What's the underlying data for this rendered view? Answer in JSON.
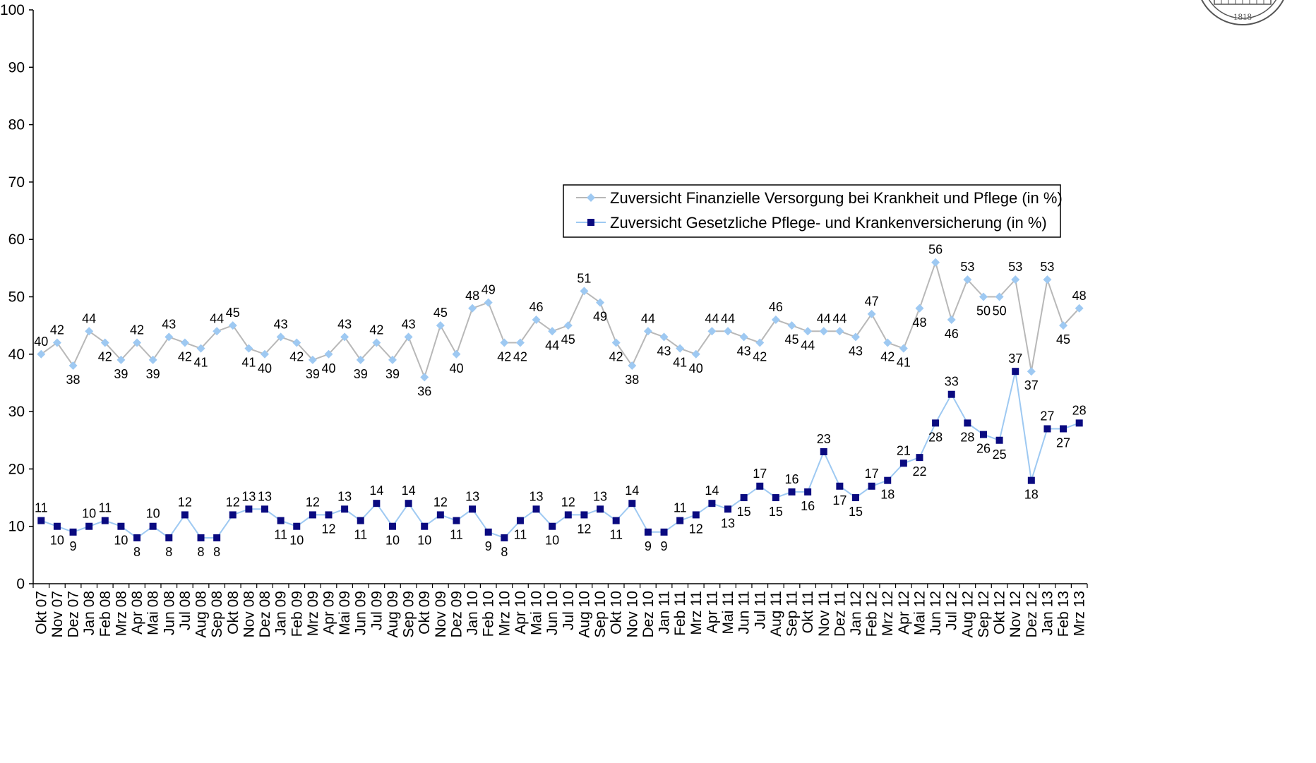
{
  "chart_data": {
    "type": "line",
    "title": "",
    "xlabel": "",
    "ylabel": "",
    "ylim": [
      0,
      100
    ],
    "yticks": [
      0,
      10,
      20,
      30,
      40,
      50,
      60,
      70,
      80,
      90,
      100
    ],
    "grid": false,
    "legend_position": "upper-right",
    "categories": [
      "Okt 07",
      "Nov 07",
      "Dez 07",
      "Jan 08",
      "Feb 08",
      "Mrz 08",
      "Apr 08",
      "Mai 08",
      "Jun 08",
      "Jul 08",
      "Aug 08",
      "Sep 08",
      "Okt 08",
      "Nov 08",
      "Dez 08",
      "Jan 09",
      "Feb 09",
      "Mrz 09",
      "Apr 09",
      "Mai 09",
      "Jun 09",
      "Jul 09",
      "Aug 09",
      "Sep 09",
      "Okt 09",
      "Nov 09",
      "Dez 09",
      "Jan 10",
      "Feb 10",
      "Mrz 10",
      "Apr 10",
      "Mai 10",
      "Jun 10",
      "Jul 10",
      "Aug 10",
      "Sep 10",
      "Okt 10",
      "Nov 10",
      "Dez 10",
      "Jan 11",
      "Feb 11",
      "Mrz 11",
      "Apr 11",
      "Mai 11",
      "Jun 11",
      "Jul 11",
      "Aug 11",
      "Sep 11",
      "Okt 11",
      "Nov 11",
      "Dez 11",
      "Jan 12",
      "Feb 12",
      "Mrz 12",
      "Apr 12",
      "Mai 12",
      "Jun 12",
      "Jul 12",
      "Aug 12",
      "Sep 12",
      "Okt 12",
      "Nov 12",
      "Dez 12",
      "Jan 13",
      "Feb 13",
      "Mrz 13"
    ],
    "series": [
      {
        "name": "Zuversicht Finanzielle Versorgung bei Krankheit und Pflege (in %)",
        "color": "#9ec9f2",
        "line_color": "#b8b8b8",
        "marker": "diamond",
        "values": [
          40,
          42,
          38,
          44,
          42,
          39,
          42,
          39,
          43,
          42,
          41,
          44,
          45,
          41,
          40,
          43,
          42,
          39,
          40,
          43,
          39,
          42,
          39,
          43,
          36,
          45,
          40,
          48,
          49,
          42,
          42,
          46,
          44,
          45,
          51,
          49,
          42,
          38,
          44,
          43,
          41,
          40,
          44,
          44,
          43,
          42,
          46,
          45,
          44,
          44,
          44,
          43,
          47,
          42,
          41,
          48,
          56,
          46,
          53,
          50,
          50,
          53,
          37,
          53,
          45,
          48
        ]
      },
      {
        "name": "Zuversicht Gesetzliche Pflege- und Krankenversicherung (in %)",
        "color": "#0a0a80",
        "line_color": "#9ec9f2",
        "marker": "square",
        "values": [
          11,
          10,
          9,
          10,
          11,
          10,
          8,
          10,
          8,
          12,
          8,
          8,
          12,
          13,
          13,
          11,
          10,
          12,
          12,
          13,
          11,
          14,
          10,
          14,
          10,
          12,
          11,
          13,
          9,
          8,
          11,
          13,
          10,
          12,
          12,
          13,
          11,
          14,
          9,
          9,
          11,
          12,
          14,
          13,
          15,
          17,
          15,
          16,
          16,
          23,
          17,
          15,
          17,
          18,
          21,
          22,
          28,
          33,
          28,
          26,
          25,
          37,
          18,
          27,
          27,
          28
        ]
      }
    ]
  }
}
